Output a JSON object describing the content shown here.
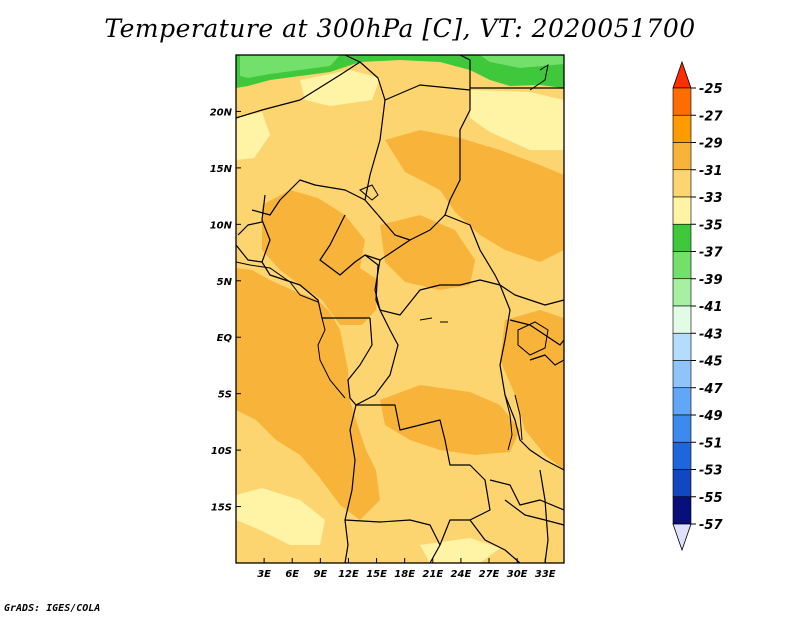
{
  "title": "Temperature at 300hPa [C], VT: 2020051700",
  "credit": "GrADS: IGES/COLA",
  "map": {
    "lon_range": [
      0,
      35
    ],
    "lat_range": [
      -20,
      25
    ],
    "x_ticks": [
      "3E",
      "6E",
      "9E",
      "12E",
      "15E",
      "18E",
      "21E",
      "24E",
      "27E",
      "30E",
      "33E"
    ],
    "x_tick_values": [
      3,
      6,
      9,
      12,
      15,
      18,
      21,
      24,
      27,
      30,
      33
    ],
    "y_ticks": [
      "20N",
      "15N",
      "10N",
      "5N",
      "EQ",
      "5S",
      "10S",
      "15S"
    ],
    "y_tick_values": [
      20,
      15,
      10,
      5,
      0,
      -5,
      -10,
      -15
    ]
  },
  "colorbar": {
    "labels": [
      "-25",
      "-27",
      "-29",
      "-31",
      "-33",
      "-35",
      "-37",
      "-39",
      "-41",
      "-43",
      "-45",
      "-47",
      "-49",
      "-51",
      "-53",
      "-55",
      "-57"
    ],
    "colors": [
      "#ff4400",
      "#ff6d00",
      "#ff9a00",
      "#f8b43a",
      "#fcd570",
      "#fff3a6",
      "#3fc83b",
      "#72e06b",
      "#a7f0a0",
      "#e2fbe4",
      "#b4dcfc",
      "#8fc4fa",
      "#62a6f6",
      "#3c89ef",
      "#1e66dc",
      "#1147c0",
      "#080f7a"
    ],
    "top_color": "#ff2d00",
    "bottom_color": "#dfe2ff"
  }
}
